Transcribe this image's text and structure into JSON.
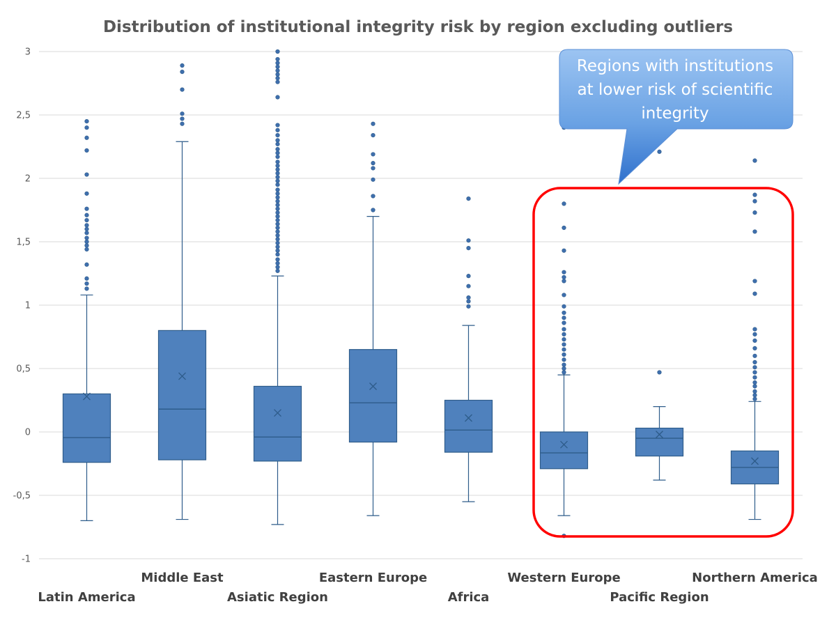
{
  "chart_data": {
    "type": "box",
    "title": "Distribution of institutional integrity risk by region excluding outliers",
    "xlabel": "",
    "ylabel": "",
    "ylim": [
      -1,
      3
    ],
    "y_ticks": [
      {
        "value": 3,
        "label": "3"
      },
      {
        "value": 2.5,
        "label": "2,5"
      },
      {
        "value": 2,
        "label": "2"
      },
      {
        "value": 1.5,
        "label": "1,5"
      },
      {
        "value": 1,
        "label": "1"
      },
      {
        "value": 0.5,
        "label": "0,5"
      },
      {
        "value": 0,
        "label": "0"
      },
      {
        "value": -0.5,
        "label": "-0,5"
      },
      {
        "value": -1,
        "label": "-1"
      }
    ],
    "grid": true,
    "series": [
      {
        "name": "Latin America",
        "whisker_low": -0.7,
        "q1": -0.24,
        "median": -0.045,
        "q3": 0.3,
        "whisker_high": 1.08,
        "mean": 0.28,
        "outliers": [
          1.13,
          1.17,
          1.21,
          1.32,
          1.44,
          1.47,
          1.5,
          1.53,
          1.57,
          1.6,
          1.63,
          1.67,
          1.71,
          1.76,
          1.88,
          2.03,
          2.22,
          2.32,
          2.4,
          2.45
        ]
      },
      {
        "name": "Middle East",
        "whisker_low": -0.69,
        "q1": -0.22,
        "median": 0.18,
        "q3": 0.8,
        "whisker_high": 2.29,
        "mean": 0.44,
        "outliers": [
          2.43,
          2.47,
          2.51,
          2.7,
          2.84,
          2.89
        ]
      },
      {
        "name": "Asiatic Region",
        "whisker_low": -0.73,
        "q1": -0.23,
        "median": -0.04,
        "q3": 0.36,
        "whisker_high": 1.23,
        "mean": 0.15,
        "outliers": [
          1.27,
          1.3,
          1.33,
          1.36,
          1.4,
          1.43,
          1.46,
          1.49,
          1.52,
          1.55,
          1.58,
          1.61,
          1.64,
          1.67,
          1.7,
          1.73,
          1.76,
          1.79,
          1.82,
          1.85,
          1.88,
          1.91,
          1.95,
          1.98,
          2.01,
          2.04,
          2.07,
          2.1,
          2.13,
          2.17,
          2.2,
          2.23,
          2.27,
          2.3,
          2.34,
          2.38,
          2.42,
          2.64,
          2.76,
          2.79,
          2.82,
          2.85,
          2.88,
          2.91,
          2.94,
          3.0
        ]
      },
      {
        "name": "Eastern Europe",
        "whisker_low": -0.66,
        "q1": -0.08,
        "median": 0.23,
        "q3": 0.65,
        "whisker_high": 1.7,
        "mean": 0.36,
        "outliers": [
          1.75,
          1.86,
          1.99,
          2.08,
          2.12,
          2.19,
          2.34,
          2.43
        ]
      },
      {
        "name": "Africa",
        "whisker_low": -0.55,
        "q1": -0.16,
        "median": 0.015,
        "q3": 0.25,
        "whisker_high": 0.84,
        "mean": 0.11,
        "outliers": [
          0.99,
          1.03,
          1.06,
          1.15,
          1.23,
          1.45,
          1.51,
          1.84
        ]
      },
      {
        "name": "Western Europe",
        "whisker_low": -0.66,
        "q1": -0.29,
        "median": -0.165,
        "q3": 0.0,
        "whisker_high": 0.45,
        "mean": -0.1,
        "outliers": [
          -0.82,
          0.47,
          0.5,
          0.53,
          0.57,
          0.61,
          0.65,
          0.69,
          0.73,
          0.77,
          0.81,
          0.86,
          0.9,
          0.94,
          0.99,
          1.08,
          1.19,
          1.22,
          1.26,
          1.43,
          1.61,
          1.8,
          2.4
        ]
      },
      {
        "name": "Pacific Region",
        "whisker_low": -0.38,
        "q1": -0.19,
        "median": -0.05,
        "q3": 0.03,
        "whisker_high": 0.2,
        "mean": -0.02,
        "outliers": [
          0.47,
          2.21
        ]
      },
      {
        "name": "Northern America",
        "whisker_low": -0.69,
        "q1": -0.41,
        "median": -0.28,
        "q3": -0.15,
        "whisker_high": 0.24,
        "mean": -0.23,
        "outliers": [
          0.26,
          0.29,
          0.32,
          0.36,
          0.39,
          0.43,
          0.47,
          0.51,
          0.55,
          0.6,
          0.66,
          0.72,
          0.77,
          0.81,
          1.09,
          1.19,
          1.58,
          1.73,
          1.82,
          1.87,
          2.14
        ]
      }
    ],
    "colors": {
      "box_fill": "#4f81bd",
      "box_stroke": "#2e5c8a",
      "grid": "#d9d9d9",
      "highlight_border": "#ff0000",
      "callout_fill": "#6aa2e4"
    },
    "annotation": {
      "text_lines": [
        "Regions with institutions",
        "at lower risk of scientific",
        "integrity"
      ],
      "highlighted_categories": [
        "Western Europe",
        "Pacific Region",
        "Northern America"
      ]
    }
  }
}
